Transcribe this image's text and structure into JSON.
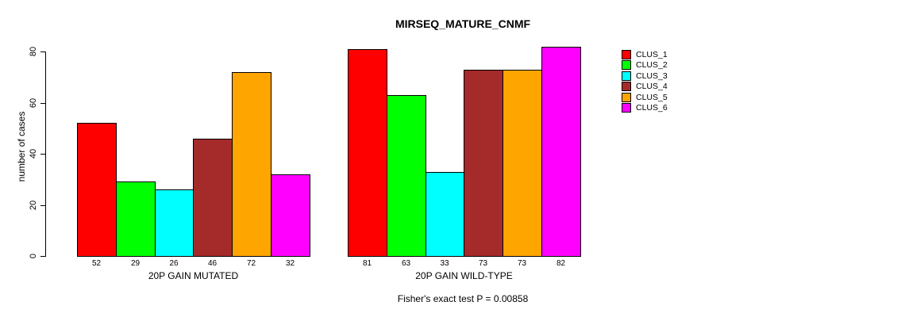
{
  "chart_data": {
    "type": "bar",
    "title": "MIRSEQ_MATURE_CNMF",
    "ylabel": "number of cases",
    "xlabel": "",
    "ylim": [
      0,
      80
    ],
    "yticks": [
      0,
      20,
      40,
      60,
      80
    ],
    "grid": false,
    "legend_position": "right",
    "categories": [
      "20P GAIN MUTATED",
      "20P GAIN WILD-TYPE"
    ],
    "series": [
      {
        "name": "CLUS_1",
        "color": "#FF0000",
        "values": [
          52,
          81
        ]
      },
      {
        "name": "CLUS_2",
        "color": "#00FF00",
        "values": [
          29,
          63
        ]
      },
      {
        "name": "CLUS_3",
        "color": "#00FFFF",
        "values": [
          26,
          33
        ]
      },
      {
        "name": "CLUS_4",
        "color": "#A52A2A",
        "values": [
          46,
          73
        ]
      },
      {
        "name": "CLUS_5",
        "color": "#FFA500",
        "values": [
          72,
          73
        ]
      },
      {
        "name": "CLUS_6",
        "color": "#FF00FF",
        "values": [
          32,
          82
        ]
      }
    ],
    "bar_value_labels": true,
    "footnote": "Fisher's exact test P = 0.00858"
  }
}
